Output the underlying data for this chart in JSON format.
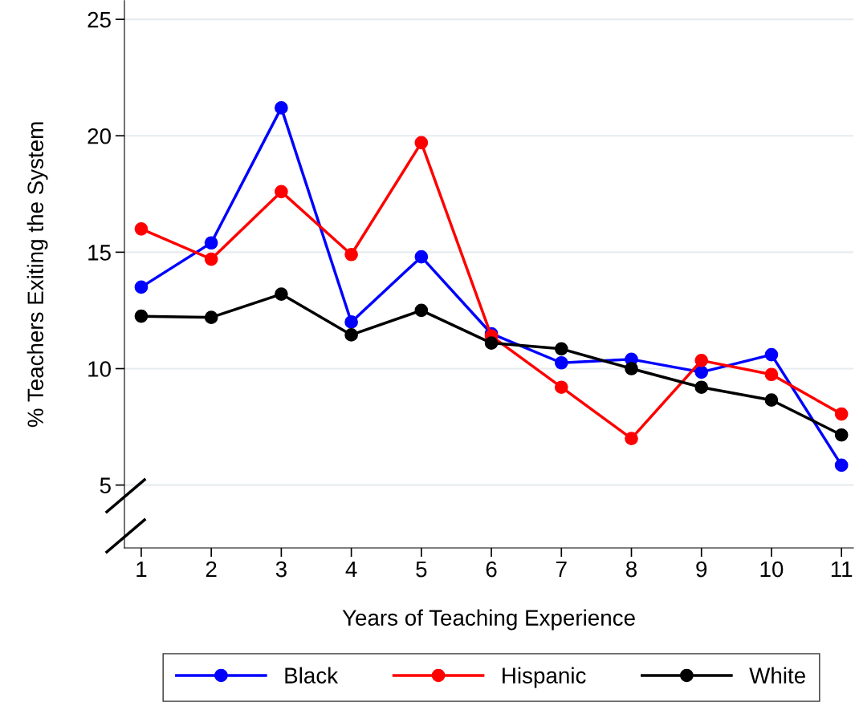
{
  "chart_data": {
    "type": "line",
    "xlabel": "Years of Teaching Experience",
    "ylabel": "% Teachers Exiting the System",
    "x": [
      1,
      2,
      3,
      4,
      5,
      6,
      7,
      8,
      9,
      10,
      11
    ],
    "series": [
      {
        "name": "Black",
        "color": "#0000ff",
        "values": [
          13.5,
          15.4,
          21.2,
          12.0,
          14.8,
          11.5,
          10.25,
          10.4,
          9.85,
          10.6,
          5.85
        ]
      },
      {
        "name": "Hispanic",
        "color": "#ff0000",
        "values": [
          16.0,
          14.7,
          17.6,
          14.9,
          19.7,
          11.4,
          9.2,
          7.0,
          10.35,
          9.75,
          8.05
        ]
      },
      {
        "name": "White",
        "color": "#000000",
        "values": [
          12.25,
          12.2,
          13.2,
          11.45,
          12.5,
          11.1,
          10.85,
          10.0,
          9.2,
          8.65,
          7.15
        ]
      }
    ],
    "xlim": [
      0.76,
      11.17
    ],
    "xticks": [
      1,
      2,
      3,
      4,
      5,
      6,
      7,
      8,
      9,
      10,
      11
    ],
    "ylim": [
      2.3,
      25.8
    ],
    "yticks": [
      5,
      10,
      15,
      20,
      25
    ],
    "grid": "y",
    "legend": "bottom",
    "marker": "circle",
    "line_style": "solid"
  }
}
